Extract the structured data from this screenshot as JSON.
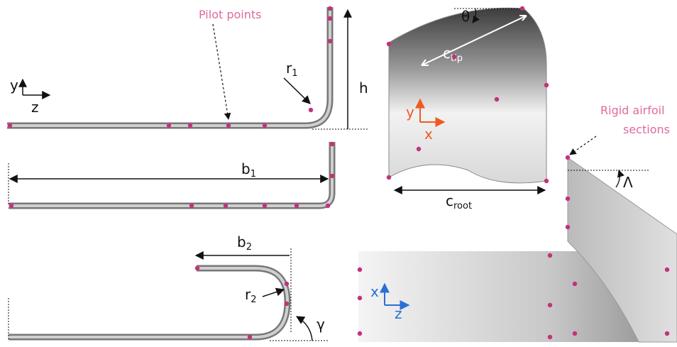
{
  "panels": {
    "side_view": {
      "pilot_label": "Pilot points",
      "axis_y": "y",
      "axis_z": "z",
      "height": "h",
      "radius": {
        "symbol": "r",
        "subscript": "1"
      }
    },
    "top_view": {
      "span": {
        "symbol": "b",
        "subscript": "1"
      }
    },
    "curled_view": {
      "span": {
        "symbol": "b",
        "subscript": "2"
      },
      "radius": {
        "symbol": "r",
        "subscript": "2"
      },
      "angle": "γ"
    },
    "wing_tip": {
      "twist": "θ",
      "tip_chord": {
        "symbol": "c",
        "subscript": "tip"
      },
      "root_chord": {
        "symbol": "c",
        "subscript": "root"
      },
      "axis_y": "y",
      "axis_x": "x"
    },
    "swept_wing": {
      "rigid_label": [
        "Rigid airfoil",
        "sections"
      ],
      "sweep": "Λ",
      "axis_x": "x",
      "axis_z": "z"
    }
  }
}
